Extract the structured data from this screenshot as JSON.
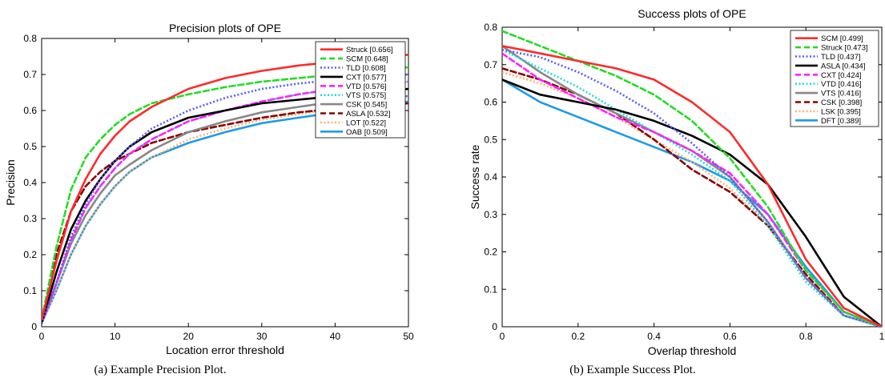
{
  "chart_data": [
    {
      "type": "line",
      "title": "Precision plots of OPE",
      "xlabel": "Location error threshold",
      "ylabel": "Precision",
      "xlim": [
        0,
        50
      ],
      "ylim": [
        0,
        0.8
      ],
      "xticks": [
        0,
        10,
        20,
        30,
        40,
        50
      ],
      "yticks": [
        0,
        0.1,
        0.2,
        0.3,
        0.4,
        0.5,
        0.6,
        0.7,
        0.8
      ],
      "legend_position": "top-right",
      "caption": "(a) Example Precision Plot.",
      "series": [
        {
          "label": "Struck [0.656]",
          "color": "#ff2a2a",
          "dash": "solid",
          "x": [
            0,
            2,
            4,
            6,
            8,
            10,
            12,
            15,
            20,
            25,
            30,
            35,
            40,
            45,
            50
          ],
          "y": [
            0.02,
            0.18,
            0.32,
            0.41,
            0.48,
            0.53,
            0.57,
            0.61,
            0.66,
            0.69,
            0.71,
            0.725,
            0.735,
            0.745,
            0.755
          ]
        },
        {
          "label": "SCM [0.648]",
          "color": "#22dd22",
          "dash": "dashed",
          "x": [
            0,
            2,
            4,
            6,
            8,
            10,
            12,
            15,
            20,
            25,
            30,
            35,
            40,
            45,
            50
          ],
          "y": [
            0.02,
            0.22,
            0.38,
            0.47,
            0.52,
            0.56,
            0.59,
            0.62,
            0.645,
            0.665,
            0.68,
            0.69,
            0.7,
            0.71,
            0.72
          ]
        },
        {
          "label": "TLD [0.608]",
          "color": "#5a5aff",
          "dash": "dotted",
          "x": [
            0,
            2,
            4,
            6,
            8,
            10,
            12,
            15,
            20,
            25,
            30,
            35,
            40,
            45,
            50
          ],
          "y": [
            0.01,
            0.12,
            0.25,
            0.34,
            0.41,
            0.46,
            0.5,
            0.55,
            0.6,
            0.635,
            0.66,
            0.675,
            0.685,
            0.695,
            0.7
          ]
        },
        {
          "label": "CXT [0.577]",
          "color": "#000000",
          "dash": "solid",
          "x": [
            0,
            2,
            4,
            6,
            8,
            10,
            12,
            15,
            20,
            25,
            30,
            35,
            40,
            45,
            50
          ],
          "y": [
            0.01,
            0.15,
            0.27,
            0.35,
            0.41,
            0.46,
            0.5,
            0.54,
            0.58,
            0.6,
            0.62,
            0.63,
            0.64,
            0.65,
            0.66
          ]
        },
        {
          "label": "VTD [0.576]",
          "color": "#ff22ff",
          "dash": "dashed",
          "x": [
            0,
            2,
            4,
            6,
            8,
            10,
            12,
            15,
            20,
            25,
            30,
            35,
            40,
            45,
            50
          ],
          "y": [
            0.01,
            0.12,
            0.24,
            0.33,
            0.39,
            0.44,
            0.48,
            0.52,
            0.57,
            0.6,
            0.625,
            0.645,
            0.66,
            0.67,
            0.68
          ]
        },
        {
          "label": "VTS [0.575]",
          "color": "#22dddd",
          "dash": "dotted",
          "x": [
            0,
            2,
            4,
            6,
            8,
            10,
            12,
            15,
            20,
            25,
            30,
            35,
            40,
            45,
            50
          ],
          "y": [
            0.01,
            0.12,
            0.24,
            0.33,
            0.39,
            0.44,
            0.48,
            0.52,
            0.57,
            0.6,
            0.625,
            0.645,
            0.66,
            0.67,
            0.68
          ]
        },
        {
          "label": "CSK [0.545]",
          "color": "#888888",
          "dash": "solid",
          "x": [
            0,
            2,
            4,
            6,
            8,
            10,
            12,
            15,
            20,
            25,
            30,
            35,
            40,
            45,
            50
          ],
          "y": [
            0.01,
            0.12,
            0.23,
            0.31,
            0.37,
            0.42,
            0.45,
            0.49,
            0.54,
            0.57,
            0.595,
            0.61,
            0.625,
            0.635,
            0.64
          ]
        },
        {
          "label": "ASLA [0.532]",
          "color": "#8b0000",
          "dash": "dashed",
          "x": [
            0,
            2,
            4,
            6,
            8,
            10,
            12,
            15,
            20,
            25,
            30,
            35,
            40,
            45,
            50
          ],
          "y": [
            0.02,
            0.2,
            0.32,
            0.39,
            0.43,
            0.46,
            0.48,
            0.51,
            0.54,
            0.56,
            0.58,
            0.595,
            0.605,
            0.615,
            0.62
          ]
        },
        {
          "label": "LOT [0.522]",
          "color": "#ffb070",
          "dash": "dotted",
          "x": [
            0,
            2,
            4,
            6,
            8,
            10,
            12,
            15,
            20,
            25,
            30,
            35,
            40,
            45,
            50
          ],
          "y": [
            0.01,
            0.1,
            0.2,
            0.28,
            0.34,
            0.39,
            0.43,
            0.47,
            0.52,
            0.55,
            0.575,
            0.59,
            0.605,
            0.615,
            0.62
          ]
        },
        {
          "label": "OAB [0.509]",
          "color": "#1e9bea",
          "dash": "solid",
          "x": [
            0,
            2,
            4,
            6,
            8,
            10,
            12,
            15,
            20,
            25,
            30,
            35,
            40,
            45,
            50
          ],
          "y": [
            0.01,
            0.1,
            0.2,
            0.28,
            0.34,
            0.39,
            0.43,
            0.47,
            0.51,
            0.54,
            0.565,
            0.58,
            0.595,
            0.61,
            0.625
          ]
        }
      ]
    },
    {
      "type": "line",
      "title": "Success plots of OPE",
      "xlabel": "Overlap threshold",
      "ylabel": "Success rate",
      "xlim": [
        0,
        1
      ],
      "ylim": [
        0,
        0.8
      ],
      "xticks": [
        0,
        0.2,
        0.4,
        0.6,
        0.8,
        1
      ],
      "yticks": [
        0,
        0.1,
        0.2,
        0.3,
        0.4,
        0.5,
        0.6,
        0.7,
        0.8
      ],
      "legend_position": "top-right",
      "caption": "(b) Example Success Plot.",
      "series": [
        {
          "label": "SCM [0.499]",
          "color": "#ff2a2a",
          "dash": "solid",
          "x": [
            0,
            0.1,
            0.2,
            0.3,
            0.4,
            0.5,
            0.6,
            0.7,
            0.8,
            0.9,
            1.0
          ],
          "y": [
            0.75,
            0.73,
            0.71,
            0.69,
            0.66,
            0.6,
            0.52,
            0.38,
            0.18,
            0.05,
            0.0
          ]
        },
        {
          "label": "Struck [0.473]",
          "color": "#22dd22",
          "dash": "dashed",
          "x": [
            0,
            0.1,
            0.2,
            0.3,
            0.4,
            0.5,
            0.6,
            0.7,
            0.8,
            0.9,
            1.0
          ],
          "y": [
            0.79,
            0.75,
            0.71,
            0.67,
            0.62,
            0.55,
            0.45,
            0.32,
            0.15,
            0.04,
            0.0
          ]
        },
        {
          "label": "TLD [0.437]",
          "color": "#5a5aff",
          "dash": "dotted",
          "x": [
            0,
            0.1,
            0.2,
            0.3,
            0.4,
            0.5,
            0.6,
            0.7,
            0.8,
            0.9,
            1.0
          ],
          "y": [
            0.74,
            0.72,
            0.68,
            0.63,
            0.57,
            0.49,
            0.4,
            0.28,
            0.13,
            0.03,
            0.0
          ]
        },
        {
          "label": "ASLA [0.434]",
          "color": "#000000",
          "dash": "solid",
          "x": [
            0,
            0.1,
            0.2,
            0.3,
            0.4,
            0.5,
            0.6,
            0.7,
            0.8,
            0.9,
            1.0
          ],
          "y": [
            0.66,
            0.62,
            0.6,
            0.58,
            0.55,
            0.51,
            0.46,
            0.38,
            0.24,
            0.08,
            0.0
          ]
        },
        {
          "label": "CXT [0.424]",
          "color": "#ff22ff",
          "dash": "dashed",
          "x": [
            0,
            0.1,
            0.2,
            0.3,
            0.4,
            0.5,
            0.6,
            0.7,
            0.8,
            0.9,
            1.0
          ],
          "y": [
            0.73,
            0.66,
            0.61,
            0.56,
            0.52,
            0.47,
            0.41,
            0.3,
            0.15,
            0.04,
            0.0
          ]
        },
        {
          "label": "VTD [0.416]",
          "color": "#22dddd",
          "dash": "dotted",
          "x": [
            0,
            0.1,
            0.2,
            0.3,
            0.4,
            0.5,
            0.6,
            0.7,
            0.8,
            0.9,
            1.0
          ],
          "y": [
            0.74,
            0.69,
            0.64,
            0.58,
            0.52,
            0.46,
            0.39,
            0.27,
            0.12,
            0.03,
            0.0
          ]
        },
        {
          "label": "VTS [0.416]",
          "color": "#888888",
          "dash": "solid",
          "x": [
            0,
            0.1,
            0.2,
            0.3,
            0.4,
            0.5,
            0.6,
            0.7,
            0.8,
            0.9,
            1.0
          ],
          "y": [
            0.75,
            0.68,
            0.62,
            0.57,
            0.52,
            0.47,
            0.4,
            0.28,
            0.13,
            0.03,
            0.0
          ]
        },
        {
          "label": "CSK [0.398]",
          "color": "#8b0000",
          "dash": "dashed",
          "x": [
            0,
            0.1,
            0.2,
            0.3,
            0.4,
            0.5,
            0.6,
            0.7,
            0.8,
            0.9,
            1.0
          ],
          "y": [
            0.69,
            0.66,
            0.62,
            0.57,
            0.5,
            0.42,
            0.36,
            0.27,
            0.14,
            0.03,
            0.0
          ]
        },
        {
          "label": "LSK [0.395]",
          "color": "#ffb070",
          "dash": "dotted",
          "x": [
            0,
            0.1,
            0.2,
            0.3,
            0.4,
            0.5,
            0.6,
            0.7,
            0.8,
            0.9,
            1.0
          ],
          "y": [
            0.68,
            0.65,
            0.61,
            0.56,
            0.5,
            0.44,
            0.37,
            0.27,
            0.13,
            0.03,
            0.0
          ]
        },
        {
          "label": "DFT [0.389]",
          "color": "#1e9bea",
          "dash": "solid",
          "x": [
            0,
            0.1,
            0.2,
            0.3,
            0.4,
            0.5,
            0.6,
            0.7,
            0.8,
            0.9,
            1.0
          ],
          "y": [
            0.66,
            0.6,
            0.56,
            0.52,
            0.48,
            0.44,
            0.39,
            0.3,
            0.16,
            0.04,
            0.0
          ]
        }
      ]
    }
  ]
}
